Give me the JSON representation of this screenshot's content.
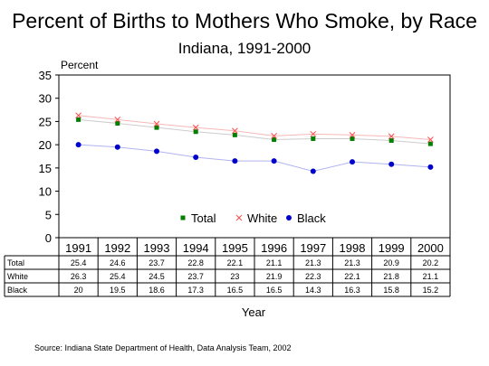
{
  "chart_data": {
    "type": "line",
    "title": "Percent of Births to Mothers Who Smoke, by Race",
    "subtitle": "Indiana, 1991-2000",
    "ylabel": "Percent",
    "xlabel": "Year",
    "categories": [
      "1991",
      "1992",
      "1993",
      "1994",
      "1995",
      "1996",
      "1997",
      "1998",
      "1999",
      "2000"
    ],
    "ylim": [
      0,
      35
    ],
    "yticks": [
      "0",
      "5",
      "10",
      "15",
      "20",
      "25",
      "30",
      "35"
    ],
    "grid": false,
    "legend_position": "bottom-right",
    "series": [
      {
        "name": "Total",
        "marker": "square",
        "color": "#008000",
        "line_color": "#cccccc",
        "values": [
          25.4,
          24.6,
          23.7,
          22.8,
          22.1,
          21.1,
          21.3,
          21.3,
          20.9,
          20.2
        ],
        "labels": [
          "25.4",
          "24.6",
          "23.7",
          "22.8",
          "22.1",
          "21.1",
          "21.3",
          "21.3",
          "20.9",
          "20.2"
        ]
      },
      {
        "name": "White",
        "marker": "x",
        "color": "#ff4d4d",
        "line_color": "#f5b8b8",
        "values": [
          26.3,
          25.4,
          24.5,
          23.7,
          23,
          21.9,
          22.3,
          22.1,
          21.8,
          21.1
        ],
        "labels": [
          "26.3",
          "25.4",
          "24.5",
          "23.7",
          "23",
          "21.9",
          "22.3",
          "22.1",
          "21.8",
          "21.1"
        ]
      },
      {
        "name": "Black",
        "marker": "circle",
        "color": "#0000cc",
        "line_color": "#b0b4f0",
        "values": [
          20,
          19.5,
          18.6,
          17.3,
          16.5,
          16.5,
          14.3,
          16.3,
          15.8,
          15.2
        ],
        "labels": [
          "20",
          "19.5",
          "18.6",
          "17.3",
          "16.5",
          "16.5",
          "14.3",
          "16.3",
          "15.8",
          "15.2"
        ]
      }
    ]
  },
  "source": "Source:  Indiana State Department of Health, Data Analysis Team, 2002"
}
